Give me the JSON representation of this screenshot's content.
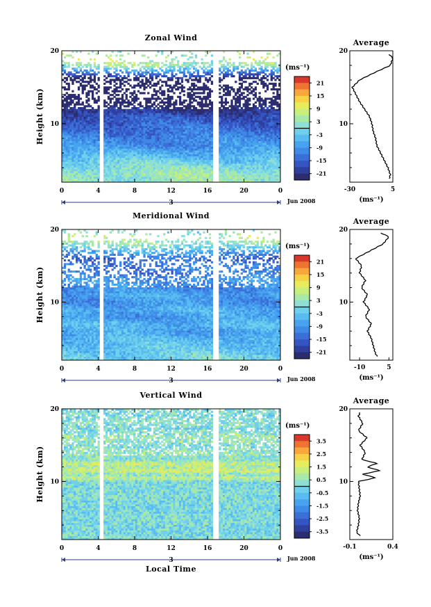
{
  "figure": {
    "date_label": "Jun 2008",
    "day_label": "3",
    "xlabel": "Local Time",
    "ylabel": "Height (km)",
    "cbar_unit": "(ms⁻¹)",
    "avg_title": "Average",
    "avg_unit": "(ms⁻¹)"
  },
  "chart_data": [
    {
      "type": "heatmap",
      "title": "Zonal Wind",
      "xlabel": "",
      "ylabel": "Height (km)",
      "x_ticks": [
        "0",
        "4",
        "8",
        "12",
        "16",
        "20",
        "0"
      ],
      "xlim": [
        0,
        24
      ],
      "y_ticks": [
        "10",
        "20"
      ],
      "ylim": [
        2,
        20
      ],
      "colorbar": {
        "unit": "(ms⁻¹)",
        "ticks": [
          "21",
          "15",
          "9",
          "3",
          "-3",
          "-9",
          "-15",
          "-21"
        ],
        "range": [
          -24,
          24
        ],
        "zero_line": true
      },
      "data_gaps_hours": [
        4.4,
        16.9
      ],
      "profile": {
        "title": "Average",
        "xlabel": "(ms⁻¹)",
        "x_ticks": [
          "-30",
          "5"
        ],
        "xlim": [
          -30,
          5
        ],
        "heights": [
          2.5,
          3,
          4,
          5,
          6,
          7,
          8,
          9,
          10,
          11,
          12,
          13,
          14,
          15,
          16,
          17,
          18,
          19,
          19.5
        ],
        "values": [
          2,
          3,
          1,
          -2,
          -5,
          -8,
          -9,
          -11,
          -12,
          -14,
          -18,
          -22,
          -25,
          -28,
          -22,
          -10,
          3,
          5,
          2
        ]
      }
    },
    {
      "type": "heatmap",
      "title": "Meridional Wind",
      "xlabel": "",
      "ylabel": "Height (km)",
      "x_ticks": [
        "0",
        "4",
        "8",
        "12",
        "16",
        "20",
        "0"
      ],
      "xlim": [
        0,
        24
      ],
      "y_ticks": [
        "10",
        "20"
      ],
      "ylim": [
        2,
        20
      ],
      "colorbar": {
        "unit": "(ms⁻¹)",
        "ticks": [
          "21",
          "15",
          "9",
          "3",
          "-3",
          "-9",
          "-15",
          "-21"
        ],
        "range": [
          -24,
          24
        ],
        "zero_line": true
      },
      "data_gaps_hours": [
        4.4,
        16.9
      ],
      "profile": {
        "title": "Average",
        "xlabel": "(ms⁻¹)",
        "x_ticks": [
          "-10",
          "5"
        ],
        "xlim": [
          -15,
          7
        ],
        "heights": [
          2.5,
          3,
          4,
          5,
          6,
          7,
          8,
          9,
          10,
          11,
          12,
          13,
          14,
          15,
          16,
          17,
          18,
          19,
          19.5
        ],
        "values": [
          -1,
          -2,
          -3,
          -4,
          -6,
          -4,
          -7,
          -5,
          -8,
          -6,
          -9,
          -7,
          -10,
          -9,
          -12,
          -5,
          2,
          5,
          1
        ]
      }
    },
    {
      "type": "heatmap",
      "title": "Vertical Wind",
      "xlabel": "Local Time",
      "ylabel": "Height (km)",
      "x_ticks": [
        "0",
        "4",
        "8",
        "12",
        "16",
        "20",
        "0"
      ],
      "xlim": [
        0,
        24
      ],
      "y_ticks": [
        "10",
        "20"
      ],
      "ylim": [
        2,
        20
      ],
      "colorbar": {
        "unit": "(ms⁻¹)",
        "ticks": [
          "3.5",
          "2.5",
          "1.5",
          "0.5",
          "-0.5",
          "-1.5",
          "-2.5",
          "-3.5"
        ],
        "range": [
          -4,
          4
        ],
        "zero_line": true
      },
      "data_gaps_hours": [
        4.4,
        16.9
      ],
      "profile": {
        "title": "Average",
        "xlabel": "(ms⁻¹)",
        "x_ticks": [
          "-0.1",
          "0.4"
        ],
        "xlim": [
          -0.1,
          0.4
        ],
        "heights": [
          2.5,
          3,
          4,
          5,
          6,
          7,
          8,
          9,
          10,
          10.5,
          11,
          11.5,
          12,
          12.5,
          13,
          14,
          15,
          16,
          17,
          18,
          19,
          19.5
        ],
        "values": [
          0.02,
          -0.02,
          0.0,
          0.01,
          -0.01,
          0.0,
          0.02,
          0.01,
          0.0,
          0.2,
          0.05,
          0.25,
          0.1,
          0.22,
          0.04,
          0.08,
          0.02,
          0.1,
          0.0,
          0.05,
          0.0,
          0.02
        ]
      }
    }
  ]
}
